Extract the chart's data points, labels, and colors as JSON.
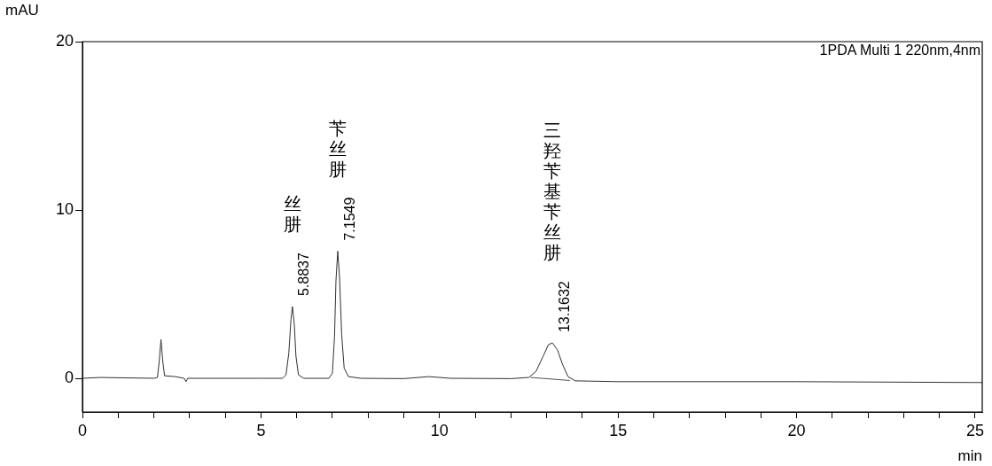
{
  "chart_data": {
    "type": "line",
    "xlabel": "min",
    "ylabel": "mAU",
    "xlim": [
      0,
      25.2
    ],
    "ylim": [
      -2,
      20
    ],
    "xticks": [
      0,
      {
        "value": 1,
        "label": null
      },
      {
        "value": 2,
        "label": null
      },
      {
        "value": 3,
        "label": null
      },
      {
        "value": 4,
        "label": null
      },
      5,
      {
        "value": 6,
        "label": null
      },
      {
        "value": 7,
        "label": null
      },
      {
        "value": 8,
        "label": null
      },
      {
        "value": 9,
        "label": null
      },
      10,
      {
        "value": 11,
        "label": null
      },
      {
        "value": 12,
        "label": null
      },
      {
        "value": 13,
        "label": null
      },
      {
        "value": 14,
        "label": null
      },
      15,
      {
        "value": 16,
        "label": null
      },
      {
        "value": 17,
        "label": null
      },
      {
        "value": 18,
        "label": null
      },
      {
        "value": 19,
        "label": null
      },
      20,
      {
        "value": 21,
        "label": null
      },
      {
        "value": 22,
        "label": null
      },
      {
        "value": 23,
        "label": null
      },
      {
        "value": 24,
        "label": null
      },
      25
    ],
    "yticks": [
      0,
      10,
      20
    ],
    "grid": false,
    "legend": false,
    "marker": "none",
    "line_style": "solid",
    "series": [
      {
        "color": "#303030",
        "x": [
          0,
          0.5,
          2.0,
          2.1,
          2.15,
          2.2,
          2.25,
          2.3,
          2.6,
          2.85,
          2.9,
          2.95,
          3.5,
          5.0,
          5.6,
          5.7,
          5.78,
          5.84,
          5.88,
          5.93,
          5.98,
          6.05,
          6.2,
          6.9,
          7.0,
          7.06,
          7.1,
          7.15,
          7.2,
          7.26,
          7.33,
          7.45,
          7.8,
          9.0,
          9.7,
          10.3,
          12.0,
          12.5,
          12.7,
          12.9,
          13.05,
          13.16,
          13.3,
          13.45,
          13.6,
          13.8,
          15,
          20,
          25,
          25.2
        ],
        "values": [
          0,
          0.05,
          0,
          0.05,
          1,
          2.3,
          1,
          0.15,
          0.1,
          0,
          -0.2,
          0,
          0,
          0,
          0,
          0.2,
          1.5,
          3.5,
          4.26,
          3.3,
          1.3,
          0.2,
          0,
          0,
          0.3,
          2.5,
          5.8,
          7.55,
          6,
          2.6,
          0.6,
          0.1,
          0,
          -0.02,
          0.1,
          0,
          -0.02,
          0.05,
          0.4,
          1.3,
          2,
          2.1,
          1.7,
          0.8,
          0.1,
          -0.15,
          -0.2,
          -0.2,
          -0.25,
          -0.25
        ]
      },
      {
        "color": "#505050",
        "x": [
          12.55,
          13.65
        ],
        "values": [
          0.05,
          -0.13
        ]
      }
    ],
    "annotations": [
      "1PDA Multi 1 220nm,4nm",
      {
        "text": "5.8837",
        "x": 5.8837,
        "y": 4.26
      },
      "丝肼",
      {
        "text": "7.1549",
        "x": 7.1549,
        "y": 7.55
      },
      "苄丝肼",
      {
        "text": "13.1632",
        "x": 13.1632,
        "y": 2.1
      },
      "三羟苄基苄丝肼"
    ]
  }
}
